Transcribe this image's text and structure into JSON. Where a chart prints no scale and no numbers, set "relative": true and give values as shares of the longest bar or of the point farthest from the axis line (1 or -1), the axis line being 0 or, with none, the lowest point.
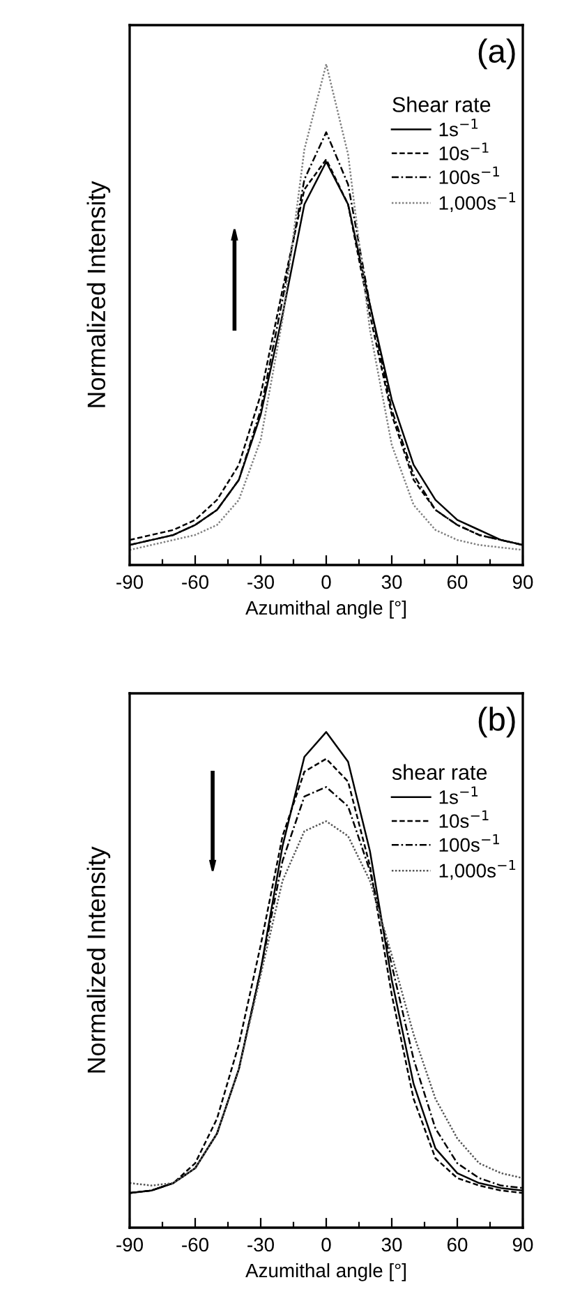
{
  "chart_data": [
    {
      "type": "line",
      "relative": true,
      "xlabel": "Azumithal angle [°]",
      "ylabel": "Normalized Intensity",
      "legend_title": "Shear rate",
      "legend": "top right",
      "grid": false,
      "tick_labels": "x",
      "annotations": [
        "(a)"
      ],
      "x": [
        -90,
        -80,
        -70,
        -60,
        -50,
        -40,
        -30,
        -20,
        -10,
        0,
        10,
        20,
        30,
        40,
        50,
        60,
        70,
        80,
        90
      ],
      "xlim": [
        -90,
        90
      ],
      "xticks": [
        -90,
        {
          "value": -75,
          "label": null
        },
        -60,
        {
          "value": -45,
          "label": null
        },
        -30,
        {
          "value": -15,
          "label": null
        },
        0,
        {
          "value": 15,
          "label": null
        },
        30,
        {
          "value": 45,
          "label": null
        },
        60,
        {
          "value": 75,
          "label": null
        },
        90
      ],
      "series": [
        {
          "name": "1s$^{−1}$",
          "color": "#000000",
          "line_style": "solid",
          "values": [
            0.04,
            0.05,
            0.06,
            0.08,
            0.11,
            0.17,
            0.3,
            0.5,
            0.72,
            0.805,
            0.72,
            0.52,
            0.33,
            0.2,
            0.13,
            0.09,
            0.07,
            0.05,
            0.04
          ]
        },
        {
          "name": "10s$^{−1}$",
          "color": "#000000",
          "line_style": "dashed",
          "values": [
            0.05,
            0.06,
            0.07,
            0.09,
            0.13,
            0.2,
            0.34,
            0.55,
            0.75,
            0.81,
            0.72,
            0.5,
            0.3,
            0.17,
            0.11,
            0.08,
            0.06,
            0.05,
            0.04
          ]
        },
        {
          "name": "100s$^{−1}$",
          "color": "#000000",
          "line_style": "dashdot",
          "values": [
            0.04,
            0.05,
            0.06,
            0.08,
            0.11,
            0.17,
            0.31,
            0.53,
            0.77,
            0.864,
            0.76,
            0.52,
            0.31,
            0.18,
            0.11,
            0.08,
            0.06,
            0.05,
            0.04
          ]
        },
        {
          "name": "1,000s$^{−1}$",
          "color": "#808080",
          "line_style": "dotted",
          "values": [
            0.03,
            0.04,
            0.05,
            0.06,
            0.08,
            0.13,
            0.25,
            0.49,
            0.83,
            1.0,
            0.82,
            0.47,
            0.24,
            0.12,
            0.07,
            0.05,
            0.04,
            0.035,
            0.03
          ]
        }
      ]
    },
    {
      "type": "line",
      "relative": true,
      "xlabel": "Azumithal angle [°]",
      "ylabel": "Normalized Intensity",
      "legend_title": "shear rate",
      "legend": "top right",
      "grid": false,
      "tick_labels": "x",
      "annotations": [
        "(b)"
      ],
      "x": [
        -90,
        -80,
        -70,
        -60,
        -50,
        -40,
        -30,
        -20,
        -10,
        0,
        10,
        20,
        30,
        40,
        50,
        60,
        70,
        80,
        90
      ],
      "xlim": [
        -90,
        90
      ],
      "xticks": [
        -90,
        {
          "value": -75,
          "label": null
        },
        -60,
        {
          "value": -45,
          "label": null
        },
        -30,
        {
          "value": -15,
          "label": null
        },
        0,
        {
          "value": 15,
          "label": null
        },
        30,
        {
          "value": 45,
          "label": null
        },
        60,
        {
          "value": 75,
          "label": null
        },
        90
      ],
      "series": [
        {
          "name": "1s$^{−1}$",
          "color": "#000000",
          "line_style": "solid",
          "values": [
            0.07,
            0.075,
            0.09,
            0.12,
            0.19,
            0.32,
            0.52,
            0.77,
            0.95,
            1.0,
            0.94,
            0.76,
            0.5,
            0.29,
            0.16,
            0.11,
            0.09,
            0.08,
            0.075
          ]
        },
        {
          "name": "10s$^{−1}$",
          "color": "#000000",
          "line_style": "dashed",
          "values": [
            0.07,
            0.075,
            0.09,
            0.13,
            0.22,
            0.37,
            0.57,
            0.79,
            0.92,
            0.946,
            0.9,
            0.73,
            0.47,
            0.26,
            0.14,
            0.1,
            0.085,
            0.075,
            0.07
          ]
        },
        {
          "name": "100s$^{−1}$",
          "color": "#000000",
          "line_style": "dashdot",
          "values": [
            0.07,
            0.075,
            0.09,
            0.12,
            0.19,
            0.32,
            0.52,
            0.74,
            0.87,
            0.889,
            0.85,
            0.72,
            0.53,
            0.34,
            0.2,
            0.13,
            0.1,
            0.085,
            0.08
          ]
        },
        {
          "name": "1,000s$^{−1}$",
          "color": "#555555",
          "line_style": "dotted",
          "values": [
            0.09,
            0.085,
            0.09,
            0.12,
            0.19,
            0.32,
            0.51,
            0.7,
            0.8,
            0.82,
            0.79,
            0.7,
            0.55,
            0.39,
            0.26,
            0.18,
            0.13,
            0.11,
            0.1
          ]
        }
      ]
    }
  ]
}
